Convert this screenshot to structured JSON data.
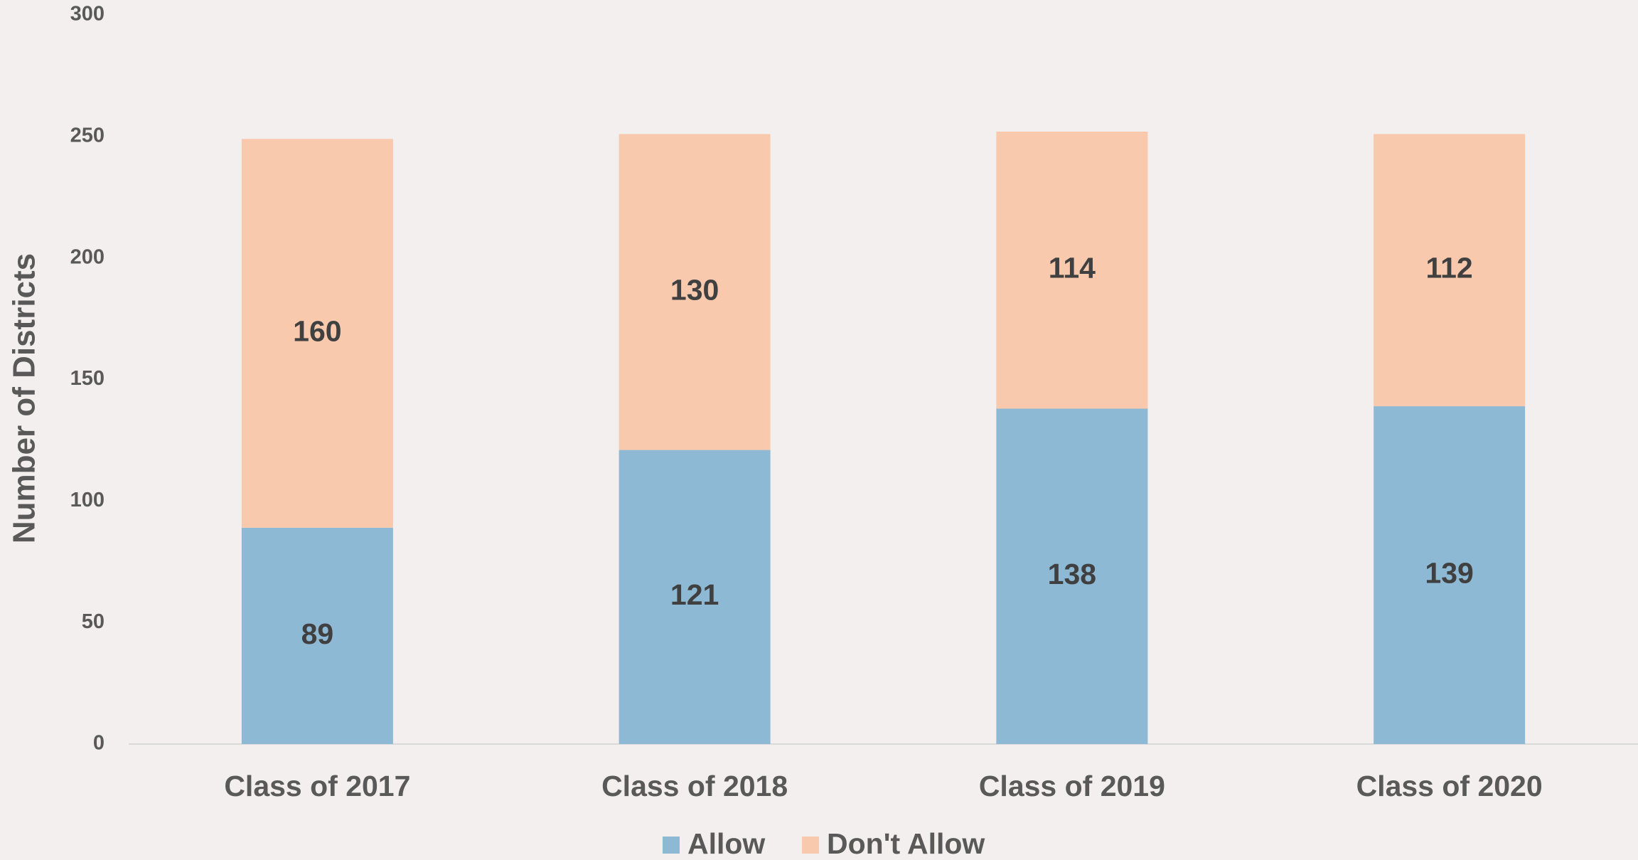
{
  "chart_data": {
    "type": "stacked_bar",
    "y_axis_label": "Number of Districts",
    "categories": [
      "Class of 2017",
      "Class of 2018",
      "Class of 2019",
      "Class of 2020"
    ],
    "series": [
      {
        "name": "Allow",
        "color": "#8db9d5",
        "values": [
          89,
          121,
          138,
          139
        ]
      },
      {
        "name": "Don't Allow",
        "color": "#f8c9ad",
        "values": [
          160,
          130,
          114,
          112
        ]
      }
    ],
    "ylim": [
      0,
      300
    ],
    "yticks": [
      0,
      50,
      100,
      150,
      200,
      250,
      300
    ],
    "grid": false,
    "legend": "bottom"
  }
}
